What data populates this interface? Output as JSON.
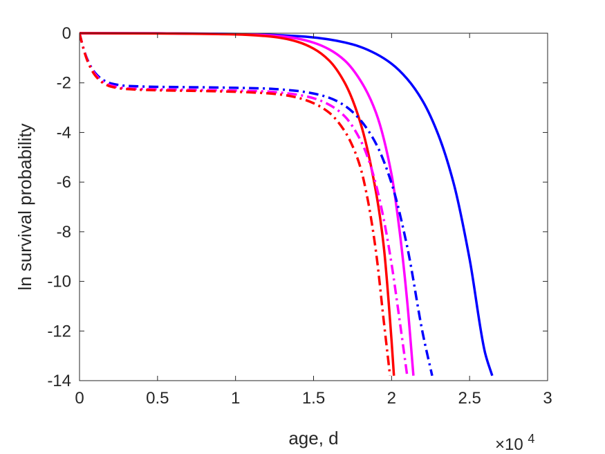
{
  "chart_data": {
    "type": "line",
    "xlabel": "age, d",
    "ylabel": "ln survival probability",
    "x_multiplier_label": "×10",
    "x_multiplier_exponent": "4",
    "xlim": [
      0,
      30000
    ],
    "ylim": [
      -14,
      0
    ],
    "xticks": [
      0,
      5000,
      10000,
      15000,
      20000,
      25000,
      30000
    ],
    "xtick_labels": [
      "0",
      "0.5",
      "1",
      "1.5",
      "2",
      "2.5",
      "3"
    ],
    "yticks": [
      0,
      -2,
      -4,
      -6,
      -8,
      -10,
      -12,
      -14
    ],
    "ytick_labels": [
      "0",
      "-2",
      "-4",
      "-6",
      "-8",
      "-10",
      "-12",
      "-14"
    ],
    "grid": false,
    "series": [
      {
        "color": "#0000ff",
        "style": "solid",
        "x": [
          0,
          5000,
          10000,
          12000,
          14000,
          15000,
          16000,
          17000,
          18000,
          19000,
          20000,
          21000,
          22000,
          23000,
          24000,
          25000,
          26000,
          26450
        ],
        "y": [
          0,
          -0.005,
          -0.03,
          -0.06,
          -0.12,
          -0.17,
          -0.25,
          -0.37,
          -0.55,
          -0.83,
          -1.23,
          -1.84,
          -2.74,
          -4.1,
          -6.1,
          -9.1,
          -12.9,
          -13.8
        ]
      },
      {
        "color": "#ff00ff",
        "style": "solid",
        "x": [
          0,
          5000,
          10000,
          12000,
          13000,
          14000,
          15000,
          16000,
          17000,
          18000,
          19000,
          20000,
          20500,
          21000,
          21400
        ],
        "y": [
          0,
          -0.005,
          -0.04,
          -0.08,
          -0.13,
          -0.22,
          -0.38,
          -0.65,
          -1.1,
          -1.9,
          -3.2,
          -5.7,
          -7.9,
          -10.8,
          -13.8
        ]
      },
      {
        "color": "#ff0000",
        "style": "solid",
        "x": [
          0,
          5000,
          10000,
          12000,
          13000,
          14000,
          15000,
          16000,
          17000,
          18000,
          19000,
          19500,
          20000,
          20150
        ],
        "y": [
          0,
          -0.01,
          -0.05,
          -0.12,
          -0.2,
          -0.35,
          -0.62,
          -1.1,
          -2.0,
          -3.6,
          -6.4,
          -8.6,
          -12.4,
          -13.8
        ]
      },
      {
        "color": "#0000ff",
        "style": "dashdot",
        "x": [
          0,
          250,
          500,
          1000,
          1500,
          2000,
          3000,
          5000,
          8000,
          10000,
          12000,
          13000,
          14000,
          15000,
          16000,
          17000,
          18000,
          19000,
          20000,
          21000,
          22000,
          22600
        ],
        "y": [
          0,
          -0.6,
          -1.05,
          -1.6,
          -1.88,
          -2.02,
          -2.12,
          -2.16,
          -2.18,
          -2.2,
          -2.23,
          -2.27,
          -2.33,
          -2.43,
          -2.6,
          -2.92,
          -3.5,
          -4.45,
          -6.05,
          -8.6,
          -12.1,
          -13.8
        ]
      },
      {
        "color": "#ff00ff",
        "style": "dashdot",
        "x": [
          0,
          250,
          500,
          1000,
          1500,
          2000,
          3000,
          5000,
          8000,
          10000,
          12000,
          13000,
          14000,
          15000,
          16000,
          17000,
          18000,
          18500,
          19000,
          19500,
          20000,
          20500,
          21000
        ],
        "y": [
          0,
          -0.6,
          -1.08,
          -1.65,
          -1.95,
          -2.1,
          -2.22,
          -2.26,
          -2.29,
          -2.31,
          -2.35,
          -2.4,
          -2.48,
          -2.62,
          -2.88,
          -3.35,
          -4.3,
          -5.05,
          -6.1,
          -7.5,
          -9.3,
          -11.5,
          -13.8
        ]
      },
      {
        "color": "#ff0000",
        "style": "dashdot",
        "x": [
          0,
          250,
          500,
          1000,
          1500,
          2000,
          3000,
          5000,
          8000,
          10000,
          12000,
          13000,
          14000,
          15000,
          16000,
          17000,
          17500,
          18000,
          18500,
          19000,
          19500,
          19900
        ],
        "y": [
          0,
          -0.62,
          -1.1,
          -1.7,
          -2.0,
          -2.15,
          -2.25,
          -2.3,
          -2.33,
          -2.36,
          -2.42,
          -2.48,
          -2.6,
          -2.82,
          -3.2,
          -3.95,
          -4.55,
          -5.4,
          -6.8,
          -8.8,
          -11.6,
          -13.8
        ]
      }
    ]
  }
}
